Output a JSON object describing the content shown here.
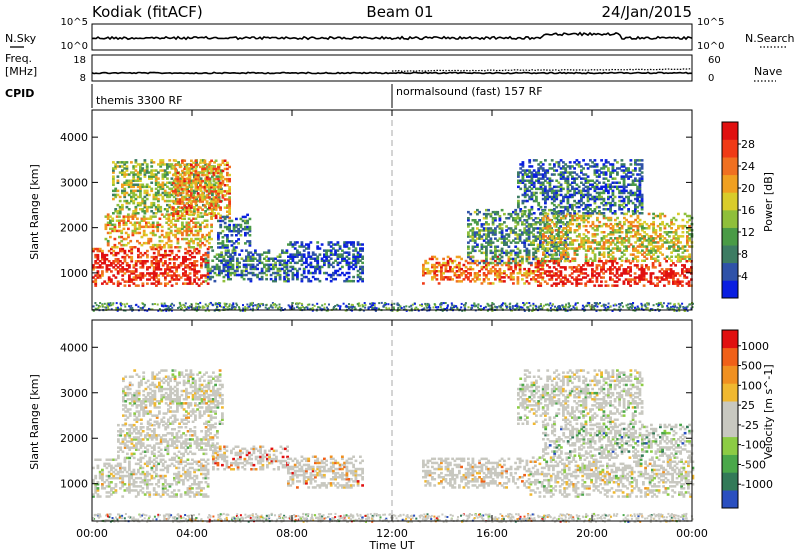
{
  "header": {
    "station": "Kodiak (fitACF)",
    "beam": "Beam 01",
    "date": "24/Jan/2015"
  },
  "top_panels": {
    "nsky_label": "N.Sky",
    "nsky_ticks": [
      "10^5",
      "10^0"
    ],
    "nsearch_label": "N.Search",
    "nsearch_ticks": [
      "10^5",
      "10^0"
    ],
    "freq_label": "Freq.",
    "freq_unit": "[MHz]",
    "freq_ticks": [
      "18",
      "8"
    ],
    "nave_label": "Nave",
    "nave_ticks": [
      "60",
      "0"
    ],
    "cpid_label": "CPID",
    "cpid_segments": [
      {
        "label": "themis 3300 RF",
        "start_hour": 0
      },
      {
        "label": "normalsound (fast) 157 RF",
        "start_hour": 12
      }
    ]
  },
  "chart_data": [
    {
      "type": "heatmap",
      "quantity": "Power",
      "ylabel": "Slant Range [km]",
      "xlabel": "Time UT",
      "xlim": [
        0,
        24
      ],
      "ylim": [
        180,
        4600
      ],
      "xticks": [
        "00:00",
        "04:00",
        "08:00",
        "12:00",
        "16:00",
        "20:00",
        "00:00"
      ],
      "yticks": [
        1000,
        2000,
        3000,
        4000
      ],
      "colorbar": {
        "label": "Power [dB]",
        "ticks": [
          4,
          8,
          12,
          16,
          20,
          24,
          28
        ],
        "colors": [
          "#0a1fe0",
          "#2f52a8",
          "#3d7c63",
          "#4a9b46",
          "#8fbf3a",
          "#d9cc2a",
          "#f0a020",
          "#f07020",
          "#f03a16",
          "#e01010"
        ]
      },
      "regions": [
        {
          "t": [
            0.0,
            4.6
          ],
          "r": [
            700,
            1550
          ],
          "level": 0.9
        },
        {
          "t": [
            0.5,
            4.8
          ],
          "r": [
            1550,
            2300
          ],
          "level": 0.6
        },
        {
          "t": [
            0.8,
            5.2
          ],
          "r": [
            2300,
            3500
          ],
          "level": 0.45
        },
        {
          "t": [
            3.2,
            5.5
          ],
          "r": [
            2200,
            3500
          ],
          "level": 0.7
        },
        {
          "t": [
            4.5,
            7.8
          ],
          "r": [
            800,
            1500
          ],
          "level": 0.25
        },
        {
          "t": [
            5.0,
            6.3
          ],
          "r": [
            1500,
            2300
          ],
          "level": 0.2
        },
        {
          "t": [
            7.8,
            10.8
          ],
          "r": [
            800,
            1700
          ],
          "level": 0.12
        },
        {
          "t": [
            13.2,
            18.0
          ],
          "r": [
            750,
            1350
          ],
          "level": 0.75
        },
        {
          "t": [
            15.0,
            19.0
          ],
          "r": [
            1200,
            2400
          ],
          "level": 0.3
        },
        {
          "t": [
            17.8,
            24.0
          ],
          "r": [
            700,
            1250
          ],
          "level": 0.95
        },
        {
          "t": [
            18.0,
            24.0
          ],
          "r": [
            1250,
            2300
          ],
          "level": 0.55
        },
        {
          "t": [
            17.0,
            22.0
          ],
          "r": [
            2300,
            3500
          ],
          "level": 0.2
        }
      ]
    },
    {
      "type": "heatmap",
      "quantity": "Velocity",
      "ylabel": "Slant Range [km]",
      "xlabel": "Time UT",
      "xlim": [
        0,
        24
      ],
      "ylim": [
        180,
        4600
      ],
      "xticks": [
        "00:00",
        "04:00",
        "08:00",
        "12:00",
        "16:00",
        "20:00",
        "00:00"
      ],
      "yticks": [
        1000,
        2000,
        3000,
        4000
      ],
      "colorbar": {
        "label": "Velocity [m s^-1]",
        "ticks": [
          "1000",
          "500",
          "100",
          "25",
          "-25",
          "-100",
          "-500",
          "-1000"
        ],
        "colors": [
          "#2a4fc0",
          "#327a58",
          "#4aa84a",
          "#8ccc44",
          "#c8c8c0",
          "#c8c8c0",
          "#f0b830",
          "#f09020",
          "#f06018",
          "#e01010"
        ]
      },
      "regions": [
        {
          "t": [
            0.0,
            4.6
          ],
          "r": [
            700,
            1550
          ],
          "level": 0.5
        },
        {
          "t": [
            1.0,
            5.0
          ],
          "r": [
            1550,
            2300
          ],
          "level": 0.5
        },
        {
          "t": [
            1.2,
            5.2
          ],
          "r": [
            2300,
            3500
          ],
          "level": 0.5
        },
        {
          "t": [
            4.8,
            7.8
          ],
          "r": [
            1300,
            1800
          ],
          "level": 0.78
        },
        {
          "t": [
            7.8,
            10.8
          ],
          "r": [
            900,
            1600
          ],
          "level": 0.7
        },
        {
          "t": [
            13.2,
            17.5
          ],
          "r": [
            900,
            1550
          ],
          "level": 0.62
        },
        {
          "t": [
            17.5,
            24.0
          ],
          "r": [
            700,
            1600
          ],
          "level": 0.5
        },
        {
          "t": [
            18.0,
            24.0
          ],
          "r": [
            1600,
            2300
          ],
          "level": 0.3
        },
        {
          "t": [
            17.0,
            22.0
          ],
          "r": [
            2300,
            3500
          ],
          "level": 0.45
        }
      ]
    }
  ]
}
